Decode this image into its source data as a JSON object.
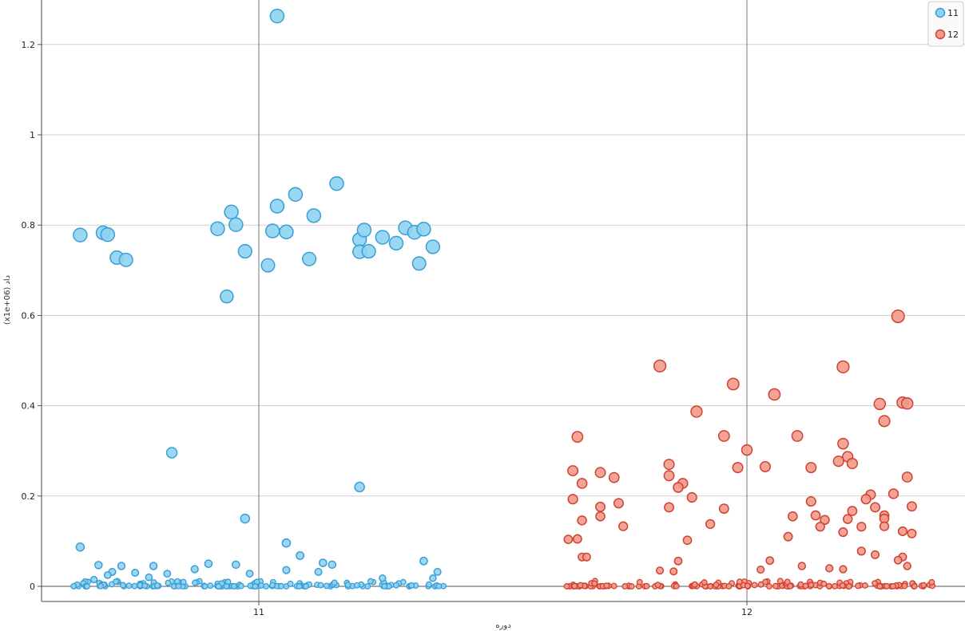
{
  "chart_data": {
    "type": "scatter",
    "title": "",
    "xlabel": "دوره",
    "ylabel": "(x1e+06) داد",
    "x_categories": [
      "11",
      "12"
    ],
    "ylim": [
      0,
      1.3
    ],
    "y_ticks": [
      0,
      0.2,
      0.4,
      0.6,
      0.8,
      1,
      1.2
    ],
    "y_tick_labels": [
      "0",
      "0.2",
      "0.4",
      "0.6",
      "0.8",
      "1",
      "1.2"
    ],
    "grid": true,
    "legend": {
      "placement": "top-right",
      "entries": [
        "11",
        "12"
      ]
    },
    "series": [
      {
        "name": "11",
        "color": "#8fd3f2",
        "stroke": "#3a9fd6",
        "x_category": "11",
        "points": [
          {
            "jitter": -0.39,
            "y": 0.778
          },
          {
            "jitter": -0.34,
            "y": 0.783
          },
          {
            "jitter": -0.33,
            "y": 0.779
          },
          {
            "jitter": -0.31,
            "y": 0.728
          },
          {
            "jitter": -0.29,
            "y": 0.723
          },
          {
            "jitter": -0.09,
            "y": 0.792
          },
          {
            "jitter": -0.06,
            "y": 0.829
          },
          {
            "jitter": -0.05,
            "y": 0.801
          },
          {
            "jitter": -0.07,
            "y": 0.642
          },
          {
            "jitter": -0.03,
            "y": 0.742
          },
          {
            "jitter": 0.02,
            "y": 0.711
          },
          {
            "jitter": 0.03,
            "y": 0.787
          },
          {
            "jitter": 0.04,
            "y": 0.842
          },
          {
            "jitter": 0.06,
            "y": 0.785
          },
          {
            "jitter": 0.08,
            "y": 0.868
          },
          {
            "jitter": 0.11,
            "y": 0.725
          },
          {
            "jitter": 0.12,
            "y": 0.821
          },
          {
            "jitter": 0.17,
            "y": 0.892
          },
          {
            "jitter": 0.22,
            "y": 0.768
          },
          {
            "jitter": 0.23,
            "y": 0.789
          },
          {
            "jitter": 0.22,
            "y": 0.741
          },
          {
            "jitter": 0.24,
            "y": 0.742
          },
          {
            "jitter": 0.27,
            "y": 0.773
          },
          {
            "jitter": 0.3,
            "y": 0.76
          },
          {
            "jitter": 0.32,
            "y": 0.794
          },
          {
            "jitter": 0.34,
            "y": 0.784
          },
          {
            "jitter": 0.36,
            "y": 0.791
          },
          {
            "jitter": 0.35,
            "y": 0.715
          },
          {
            "jitter": 0.38,
            "y": 0.752
          },
          {
            "jitter": 0.04,
            "y": 1.263
          },
          {
            "jitter": -0.19,
            "y": 0.296
          },
          {
            "jitter": 0.22,
            "y": 0.22
          },
          {
            "jitter": -0.03,
            "y": 0.15
          },
          {
            "jitter": -0.39,
            "y": 0.087
          },
          {
            "jitter": 0.06,
            "y": 0.096
          },
          {
            "jitter": -0.35,
            "y": 0.047
          },
          {
            "jitter": -0.3,
            "y": 0.045
          },
          {
            "jitter": -0.23,
            "y": 0.045
          },
          {
            "jitter": -0.11,
            "y": 0.05
          },
          {
            "jitter": -0.05,
            "y": 0.048
          },
          {
            "jitter": 0.09,
            "y": 0.068
          },
          {
            "jitter": 0.14,
            "y": 0.052
          },
          {
            "jitter": 0.16,
            "y": 0.048
          },
          {
            "jitter": 0.36,
            "y": 0.056
          },
          {
            "jitter": -0.32,
            "y": 0.032
          },
          {
            "jitter": -0.27,
            "y": 0.03
          },
          {
            "jitter": -0.2,
            "y": 0.028
          },
          {
            "jitter": -0.14,
            "y": 0.038
          },
          {
            "jitter": -0.02,
            "y": 0.028
          },
          {
            "jitter": 0.06,
            "y": 0.036
          },
          {
            "jitter": 0.13,
            "y": 0.032
          },
          {
            "jitter": 0.39,
            "y": 0.032
          },
          {
            "jitter": -0.36,
            "y": 0.015
          },
          {
            "jitter": 0.27,
            "y": 0.018
          },
          {
            "jitter": 0.38,
            "y": 0.018
          },
          {
            "jitter": -0.33,
            "y": 0.025
          },
          {
            "jitter": -0.24,
            "y": 0.02
          }
        ],
        "low_cluster_note": ""
      },
      {
        "name": "12",
        "color": "#f19a8c",
        "stroke": "#d2412f",
        "x_category": "12",
        "points": [
          {
            "jitter": 0.33,
            "y": 0.598
          },
          {
            "jitter": -0.19,
            "y": 0.488
          },
          {
            "jitter": 0.21,
            "y": 0.486
          },
          {
            "jitter": -0.03,
            "y": 0.448
          },
          {
            "jitter": 0.06,
            "y": 0.425
          },
          {
            "jitter": 0.29,
            "y": 0.404
          },
          {
            "jitter": 0.34,
            "y": 0.407
          },
          {
            "jitter": 0.35,
            "y": 0.405
          },
          {
            "jitter": -0.11,
            "y": 0.387
          },
          {
            "jitter": 0.3,
            "y": 0.366
          },
          {
            "jitter": -0.37,
            "y": 0.331
          },
          {
            "jitter": -0.05,
            "y": 0.333
          },
          {
            "jitter": 0.11,
            "y": 0.333
          },
          {
            "jitter": 0.21,
            "y": 0.316
          },
          {
            "jitter": 0.0,
            "y": 0.302
          },
          {
            "jitter": 0.22,
            "y": 0.287
          },
          {
            "jitter": 0.2,
            "y": 0.277
          },
          {
            "jitter": -0.17,
            "y": 0.27
          },
          {
            "jitter": 0.23,
            "y": 0.272
          },
          {
            "jitter": -0.02,
            "y": 0.263
          },
          {
            "jitter": 0.04,
            "y": 0.265
          },
          {
            "jitter": 0.14,
            "y": 0.263
          },
          {
            "jitter": -0.38,
            "y": 0.256
          },
          {
            "jitter": -0.32,
            "y": 0.252
          },
          {
            "jitter": -0.29,
            "y": 0.241
          },
          {
            "jitter": -0.17,
            "y": 0.245
          },
          {
            "jitter": 0.35,
            "y": 0.242
          },
          {
            "jitter": -0.36,
            "y": 0.228
          },
          {
            "jitter": -0.14,
            "y": 0.228
          },
          {
            "jitter": -0.15,
            "y": 0.219
          },
          {
            "jitter": 0.32,
            "y": 0.205
          },
          {
            "jitter": 0.27,
            "y": 0.203
          },
          {
            "jitter": -0.12,
            "y": 0.197
          },
          {
            "jitter": -0.38,
            "y": 0.193
          },
          {
            "jitter": -0.28,
            "y": 0.184
          },
          {
            "jitter": 0.14,
            "y": 0.188
          },
          {
            "jitter": 0.26,
            "y": 0.193
          },
          {
            "jitter": -0.32,
            "y": 0.176
          },
          {
            "jitter": -0.17,
            "y": 0.175
          },
          {
            "jitter": -0.05,
            "y": 0.172
          },
          {
            "jitter": 0.28,
            "y": 0.175
          },
          {
            "jitter": 0.36,
            "y": 0.177
          },
          {
            "jitter": 0.23,
            "y": 0.167
          },
          {
            "jitter": -0.32,
            "y": 0.155
          },
          {
            "jitter": 0.1,
            "y": 0.155
          },
          {
            "jitter": 0.15,
            "y": 0.157
          },
          {
            "jitter": 0.3,
            "y": 0.157
          },
          {
            "jitter": -0.36,
            "y": 0.146
          },
          {
            "jitter": 0.17,
            "y": 0.147
          },
          {
            "jitter": 0.22,
            "y": 0.149
          },
          {
            "jitter": 0.3,
            "y": 0.15
          },
          {
            "jitter": -0.27,
            "y": 0.133
          },
          {
            "jitter": -0.08,
            "y": 0.138
          },
          {
            "jitter": 0.16,
            "y": 0.132
          },
          {
            "jitter": 0.25,
            "y": 0.132
          },
          {
            "jitter": 0.3,
            "y": 0.133
          },
          {
            "jitter": 0.34,
            "y": 0.122
          },
          {
            "jitter": 0.21,
            "y": 0.12
          },
          {
            "jitter": 0.36,
            "y": 0.117
          },
          {
            "jitter": 0.09,
            "y": 0.11
          },
          {
            "jitter": -0.39,
            "y": 0.104
          },
          {
            "jitter": -0.37,
            "y": 0.105
          },
          {
            "jitter": -0.13,
            "y": 0.102
          },
          {
            "jitter": 0.25,
            "y": 0.078
          },
          {
            "jitter": 0.28,
            "y": 0.07
          },
          {
            "jitter": -0.36,
            "y": 0.065
          },
          {
            "jitter": -0.35,
            "y": 0.065
          },
          {
            "jitter": 0.34,
            "y": 0.065
          },
          {
            "jitter": -0.15,
            "y": 0.056
          },
          {
            "jitter": 0.05,
            "y": 0.057
          },
          {
            "jitter": 0.33,
            "y": 0.058
          },
          {
            "jitter": 0.35,
            "y": 0.045
          },
          {
            "jitter": 0.18,
            "y": 0.04
          },
          {
            "jitter": -0.19,
            "y": 0.035
          },
          {
            "jitter": -0.16,
            "y": 0.033
          },
          {
            "jitter": 0.03,
            "y": 0.037
          },
          {
            "jitter": 0.12,
            "y": 0.045
          },
          {
            "jitter": 0.21,
            "y": 0.038
          }
        ]
      }
    ]
  }
}
